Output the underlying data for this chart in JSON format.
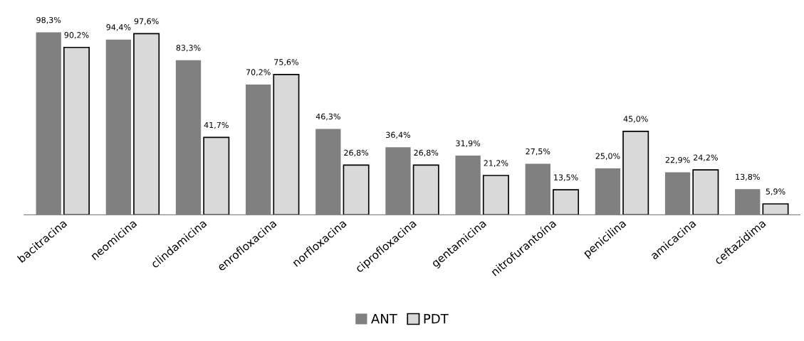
{
  "chart_data": {
    "type": "bar",
    "categories": [
      "bacitracina",
      "neomicina",
      "clindamicina",
      "enrofloxacina",
      "norfloxacina",
      "ciprofloxacina",
      "gentamicina",
      "nitrofurantoína",
      "penicilina",
      "amicacina",
      "ceftazidima"
    ],
    "series": [
      {
        "name": "ANT",
        "color": "#808080",
        "values": [
          98.3,
          94.4,
          83.3,
          70.2,
          46.3,
          36.4,
          31.9,
          27.5,
          25.0,
          22.9,
          13.8
        ],
        "value_labels": [
          "98,3%",
          "94,4%",
          "83,3%",
          "70,2%",
          "46,3%",
          "36,4%",
          "31,9%",
          "27,5%",
          "25,0%",
          "22,9%",
          "13,8%"
        ]
      },
      {
        "name": "PDT",
        "color": "#d9d9d9",
        "values": [
          90.2,
          97.6,
          41.7,
          75.6,
          26.8,
          26.8,
          21.2,
          13.5,
          45.0,
          24.2,
          5.9
        ],
        "value_labels": [
          "90,2%",
          "97,6%",
          "41,7%",
          "75,6%",
          "26,8%",
          "26,8%",
          "21,2%",
          "13,5%",
          "45,0%",
          "24,2%",
          "5,9%"
        ]
      }
    ],
    "legend": "bottom",
    "grid": false,
    "tick_labels": "x"
  }
}
